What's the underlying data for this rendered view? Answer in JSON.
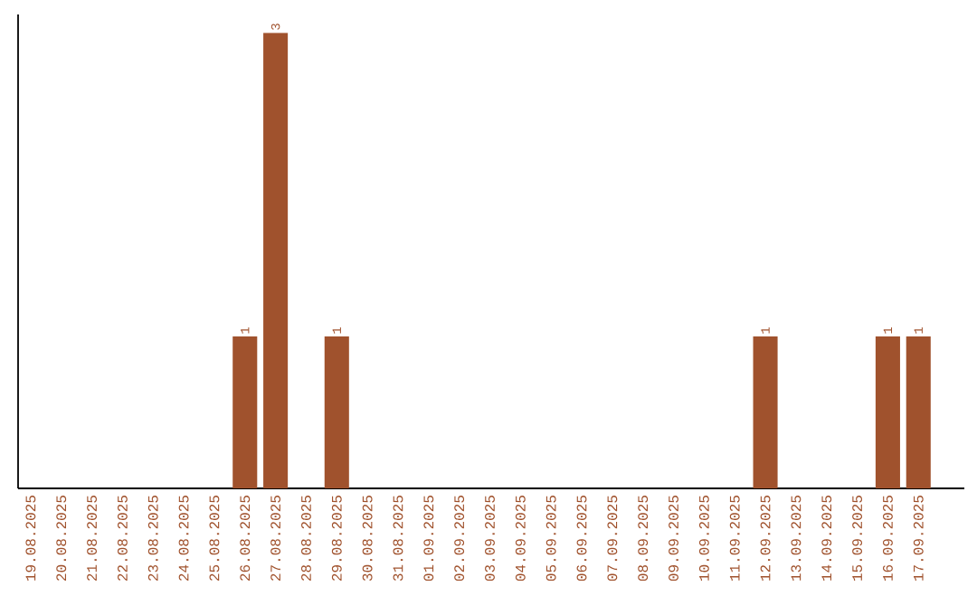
{
  "chart_data": {
    "type": "bar",
    "categories": [
      "19.08.2025",
      "20.08.2025",
      "21.08.2025",
      "22.08.2025",
      "23.08.2025",
      "24.08.2025",
      "25.08.2025",
      "26.08.2025",
      "27.08.2025",
      "28.08.2025",
      "29.08.2025",
      "30.08.2025",
      "31.08.2025",
      "01.09.2025",
      "02.09.2025",
      "03.09.2025",
      "04.09.2025",
      "05.09.2025",
      "06.09.2025",
      "07.09.2025",
      "08.09.2025",
      "09.09.2025",
      "10.09.2025",
      "11.09.2025",
      "12.09.2025",
      "13.09.2025",
      "14.09.2025",
      "15.09.2025",
      "16.09.2025",
      "17.09.2025"
    ],
    "values": [
      0,
      0,
      0,
      0,
      0,
      0,
      0,
      1,
      3,
      0,
      1,
      0,
      0,
      0,
      0,
      0,
      0,
      0,
      0,
      0,
      0,
      0,
      0,
      0,
      1,
      0,
      0,
      0,
      1,
      1
    ],
    "value_labels": [
      null,
      null,
      null,
      null,
      null,
      null,
      null,
      "1",
      "3",
      null,
      "1",
      null,
      null,
      null,
      null,
      null,
      null,
      null,
      null,
      null,
      null,
      null,
      null,
      null,
      "1",
      null,
      null,
      null,
      "1",
      "1"
    ],
    "color": "#a0522d"
  }
}
